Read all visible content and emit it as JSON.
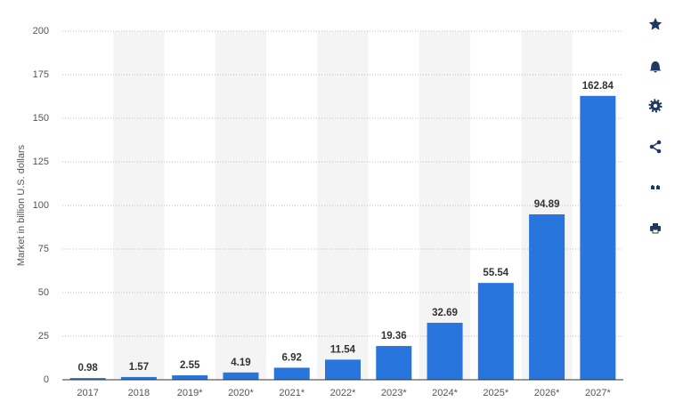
{
  "chart_data": {
    "type": "bar",
    "y_label": "Market in billion U.S. dollars",
    "categories": [
      "2017",
      "2018",
      "2019*",
      "2020*",
      "2021*",
      "2022*",
      "2023*",
      "2024*",
      "2025*",
      "2026*",
      "2027*"
    ],
    "values": [
      0.98,
      1.57,
      2.55,
      4.19,
      6.92,
      11.54,
      19.36,
      32.69,
      55.54,
      94.89,
      162.84
    ],
    "color": "#2876dd",
    "ylim": [
      0,
      200
    ],
    "yticks": [
      0,
      25,
      50,
      75,
      100,
      125,
      150,
      175,
      200
    ],
    "grid": true
  }
}
